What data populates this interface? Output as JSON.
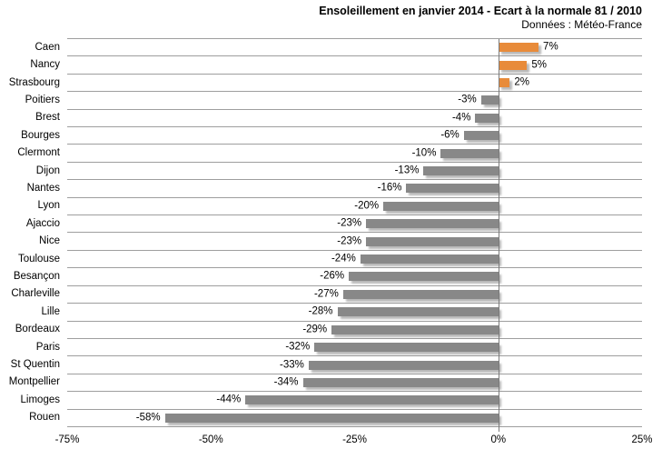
{
  "chart_data": {
    "type": "bar",
    "orientation": "horizontal",
    "title": "Ensoleillement en janvier 2014 - Ecart à la normale 81 / 2010",
    "subtitle": "Données : Météo-France",
    "categories": [
      "Caen",
      "Nancy",
      "Strasbourg",
      "Poitiers",
      "Brest",
      "Bourges",
      "Clermont",
      "Dijon",
      "Nantes",
      "Lyon",
      "Ajaccio",
      "Nice",
      "Toulouse",
      "Besançon",
      "Charleville",
      "Lille",
      "Bordeaux",
      "Paris",
      "St Quentin",
      "Montpellier",
      "Limoges",
      "Rouen"
    ],
    "values": [
      7,
      5,
      2,
      -3,
      -4,
      -6,
      -10,
      -13,
      -16,
      -20,
      -23,
      -23,
      -24,
      -26,
      -27,
      -28,
      -29,
      -32,
      -33,
      -34,
      -44,
      -58
    ],
    "labels": [
      "7%",
      "5%",
      "2%",
      "-3%",
      "-4%",
      "-6%",
      "-10%",
      "-13%",
      "-16%",
      "-20%",
      "-23%",
      "-23%",
      "-24%",
      "-26%",
      "-27%",
      "-28%",
      "-29%",
      "-32%",
      "-33%",
      "-34%",
      "-44%",
      "-58%"
    ],
    "xlim": [
      -75,
      25
    ],
    "xticks": [
      {
        "label": "-75%",
        "value": -75
      },
      {
        "label": "-50%",
        "value": -50
      },
      {
        "label": "-25%",
        "value": -25
      },
      {
        "label": "0%",
        "value": 0
      },
      {
        "label": "25%",
        "value": 25
      }
    ],
    "grid": "horizontal-row-separators",
    "legend": "none",
    "colors": {
      "positive_bar": "#E88B3A",
      "negative_bar": "#888888",
      "gridline": "#9E9E9E",
      "zero_axis": "#7A7A7A",
      "text": "#000000",
      "background": "#FFFFFF"
    }
  }
}
